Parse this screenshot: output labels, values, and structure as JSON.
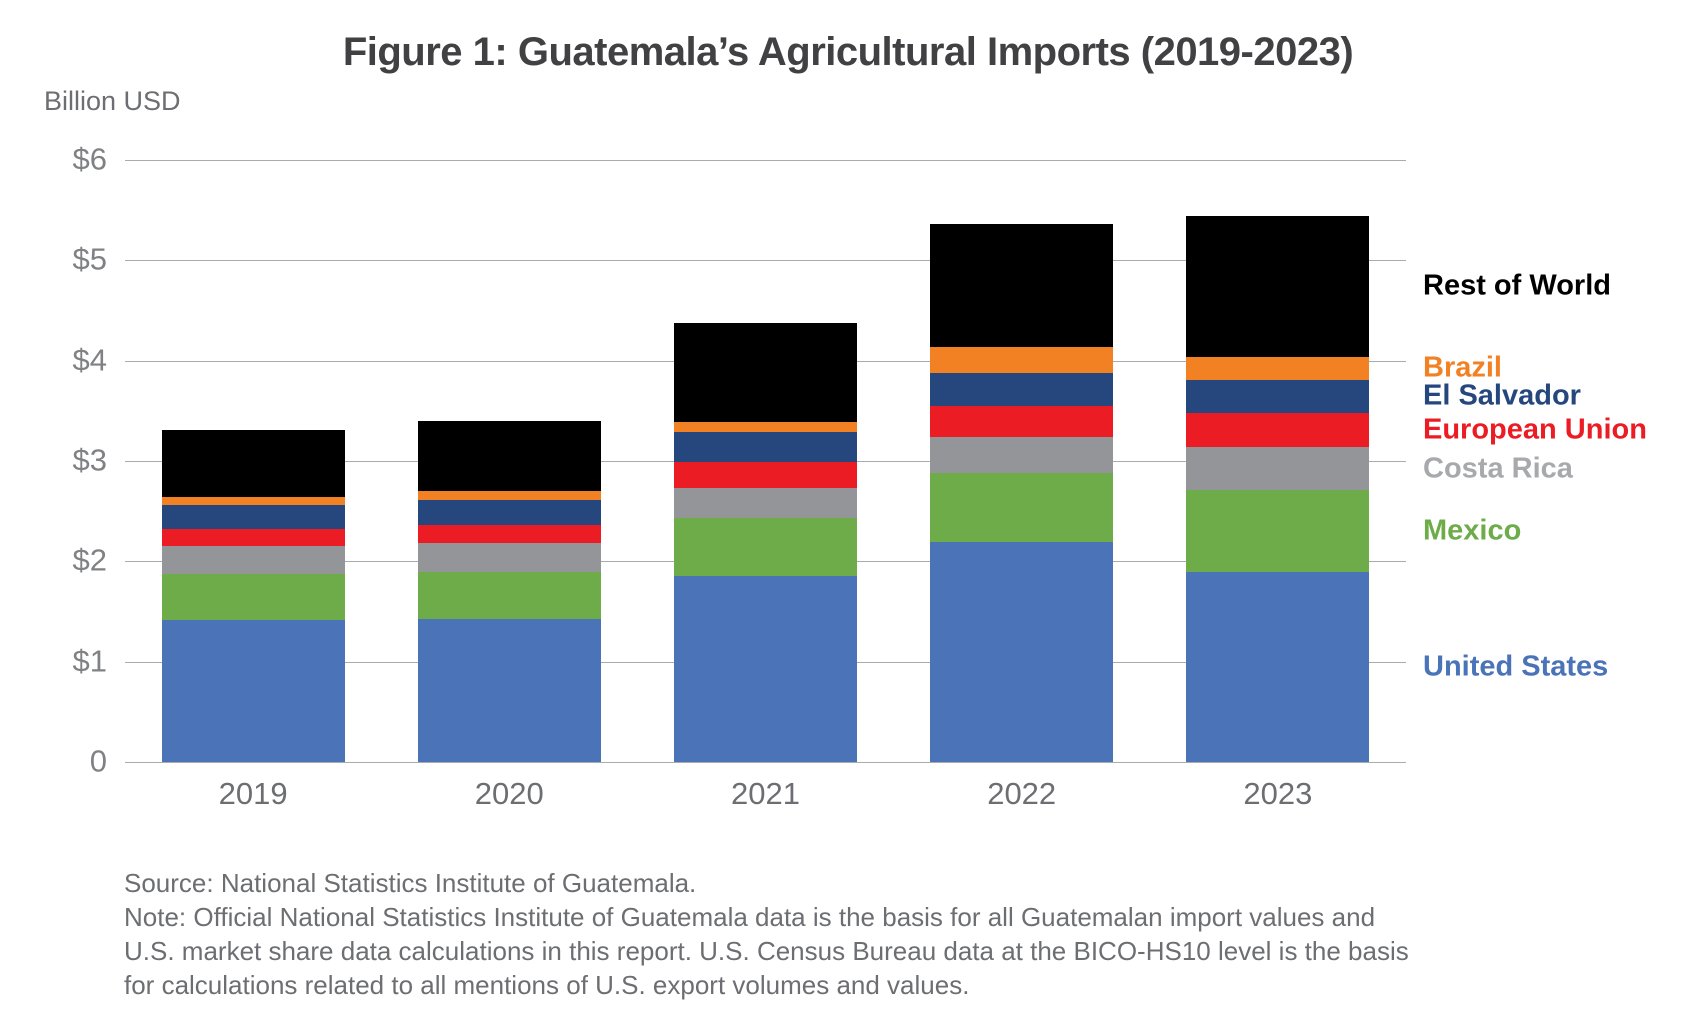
{
  "figure": {
    "title": "Figure 1: Guatemala’s Agricultural Imports (2019-2023)",
    "y_axis_title": "Billion USD",
    "footnote_lines": [
      "Source: National Statistics Institute of Guatemala.",
      "Note: Official National Statistics Institute of Guatemala data is the basis for all Guatemalan import values and",
      "U.S. market share data calculations in this report. U.S. Census Bureau data at the BICO-HS10 level is the basis",
      "for calculations related to all mentions of U.S. export volumes and values."
    ]
  },
  "colors": {
    "title_text": "#414042",
    "y_tick_text": "#808184",
    "x_tick_text": "#6D6E71",
    "footnote_text": "#6D6E71",
    "gridline": "#A9ABAE",
    "background": "#FFFFFF"
  },
  "chart_data": {
    "type": "bar",
    "stacked": true,
    "title": "Figure 1: Guatemala’s Agricultural Imports (2019-2023)",
    "ylabel": "Billion USD",
    "xlabel": "",
    "ylim": [
      0,
      6
    ],
    "grid": true,
    "legend_position": "right",
    "units": "billion USD",
    "categories": [
      "2019",
      "2020",
      "2021",
      "2022",
      "2023"
    ],
    "yticks": [
      {
        "label": "$6",
        "value": 6
      },
      {
        "label": "$5",
        "value": 5
      },
      {
        "label": "$4",
        "value": 4
      },
      {
        "label": "$3",
        "value": 3
      },
      {
        "label": "$2",
        "value": 2
      },
      {
        "label": "$1",
        "value": 1
      },
      {
        "label": "0",
        "value": 0
      }
    ],
    "series": [
      {
        "name": "United States",
        "color": "#4A73B8",
        "values": [
          1.42,
          1.43,
          1.85,
          2.19,
          1.89
        ]
      },
      {
        "name": "Mexico",
        "color": "#6EAC49",
        "values": [
          0.45,
          0.46,
          0.58,
          0.69,
          0.82
        ]
      },
      {
        "name": "Costa Rica",
        "color": "#939598",
        "legend_color": "#A7A9AC",
        "values": [
          0.28,
          0.29,
          0.3,
          0.36,
          0.43
        ]
      },
      {
        "name": "European Union",
        "color": "#EC1C24",
        "values": [
          0.17,
          0.18,
          0.26,
          0.31,
          0.34
        ]
      },
      {
        "name": "El Salvador",
        "color": "#26477D",
        "values": [
          0.24,
          0.25,
          0.3,
          0.33,
          0.33
        ]
      },
      {
        "name": "Brazil",
        "color": "#F28124",
        "values": [
          0.08,
          0.09,
          0.1,
          0.26,
          0.23
        ]
      },
      {
        "name": "Rest of World",
        "color": "#000000",
        "values": [
          0.67,
          0.7,
          0.99,
          1.22,
          1.4
        ]
      }
    ],
    "totals": [
      3.31,
      3.4,
      4.38,
      5.36,
      5.44
    ]
  }
}
